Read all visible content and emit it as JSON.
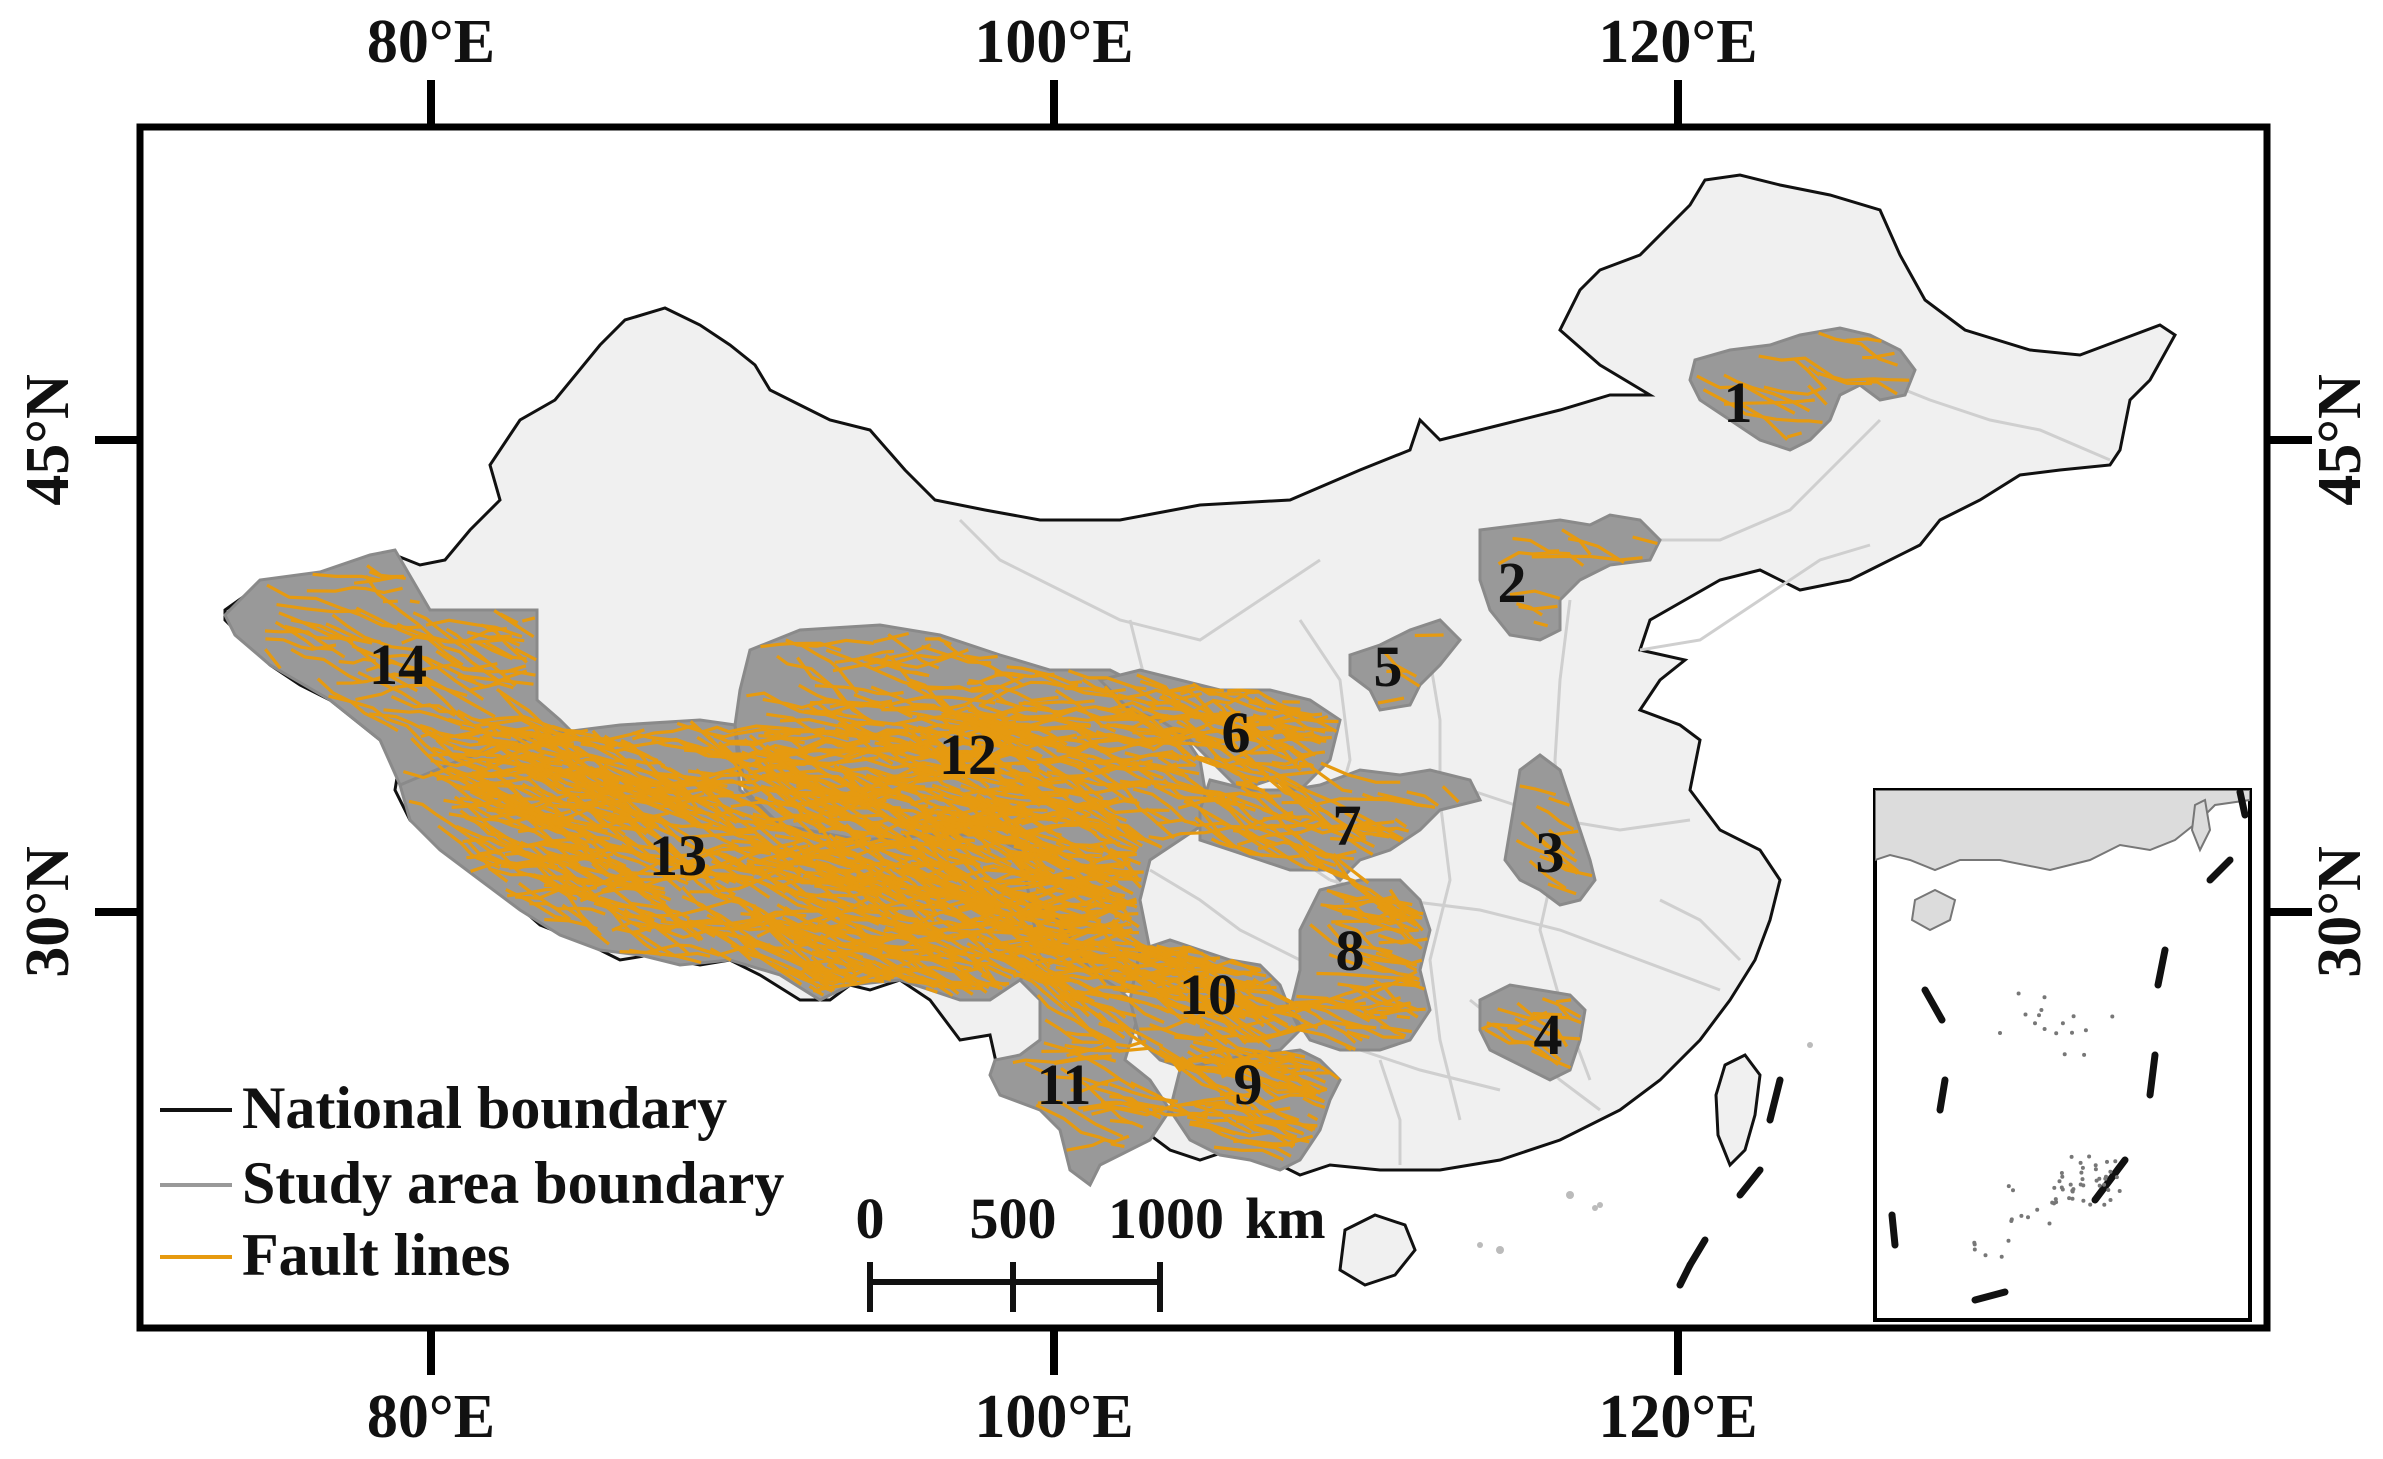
{
  "map": {
    "axes": {
      "top_lon": [
        "80°E",
        "100°E",
        "120°E"
      ],
      "bottom_lon": [
        "80°E",
        "100°E",
        "120°E"
      ],
      "left_lat": [
        "45°N",
        "30°N"
      ],
      "right_lat": [
        "45°N",
        "30°N"
      ]
    },
    "regions": [
      "1",
      "2",
      "3",
      "4",
      "5",
      "6",
      "7",
      "8",
      "9",
      "10",
      "11",
      "12",
      "13",
      "14"
    ],
    "legend": {
      "national": "National boundary",
      "study": "Study area boundary",
      "fault": "Fault lines"
    },
    "scale": {
      "ticks": [
        "0",
        "500",
        "1000"
      ],
      "unit": "km"
    },
    "colors": {
      "land": "#f0f0f0",
      "study_area": "#999999",
      "fault_lines": "#e69a10",
      "national_boundary": "#111111",
      "province_lines": "#cfcfcf"
    }
  }
}
